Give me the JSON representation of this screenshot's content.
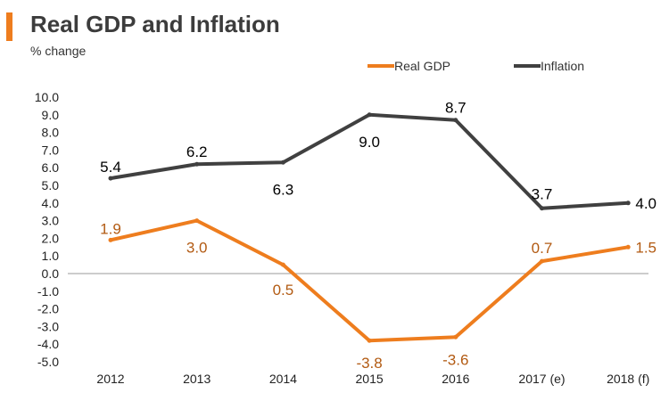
{
  "header": {
    "title": "Real GDP and Inflation",
    "subtitle": "% change"
  },
  "colors": {
    "accent": "#ee7d1e",
    "real_gdp": "#ee7d1e",
    "inflation": "#404040",
    "gdp_label": "#b25a12",
    "inflation_label": "#000000",
    "axis_text": "#222222",
    "zero_line": "#9a9a9a"
  },
  "chart_data": {
    "type": "line",
    "title": "Real GDP and Inflation",
    "ylabel": "% change",
    "xlabel": "",
    "categories": [
      "2012",
      "2013",
      "2014",
      "2015",
      "2016",
      "2017 (e)",
      "2018 (f)"
    ],
    "ylim": [
      -5.0,
      10.0
    ],
    "ytick_step": 1.0,
    "yticks": [
      "10.0",
      "9.0",
      "8.0",
      "7.0",
      "6.0",
      "5.0",
      "4.0",
      "3.0",
      "2.0",
      "1.0",
      "0.0",
      "-1.0",
      "-2.0",
      "-3.0",
      "-4.0",
      "-5.0"
    ],
    "grid": false,
    "legend_position": "top-right",
    "series": [
      {
        "name": "Real GDP",
        "values": [
          1.9,
          3.0,
          0.5,
          -3.8,
          -3.6,
          0.7,
          1.5
        ],
        "labels": [
          "1.9",
          "3.0",
          "0.5",
          "-3.8",
          "-3.6",
          "0.7",
          "1.5"
        ]
      },
      {
        "name": "Inflation",
        "values": [
          5.4,
          6.2,
          6.3,
          9.0,
          8.7,
          3.7,
          4.0
        ],
        "labels": [
          "5.4",
          "6.2",
          "6.3",
          "9.0",
          "8.7",
          "3.7",
          "4.0"
        ]
      }
    ]
  }
}
